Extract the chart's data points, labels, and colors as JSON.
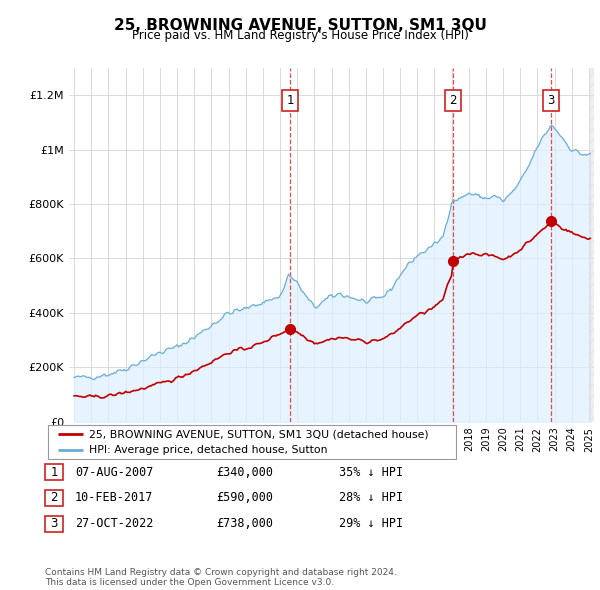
{
  "title": "25, BROWNING AVENUE, SUTTON, SM1 3QU",
  "subtitle": "Price paid vs. HM Land Registry's House Price Index (HPI)",
  "sale_dates_str": [
    "07-AUG-2007",
    "10-FEB-2017",
    "27-OCT-2022"
  ],
  "sale_years": [
    2007.6,
    2017.1,
    2022.8
  ],
  "sale_prices": [
    340000,
    590000,
    738000
  ],
  "sale_labels": [
    "1",
    "2",
    "3"
  ],
  "sale_pct": [
    "35% ↓ HPI",
    "28% ↓ HPI",
    "29% ↓ HPI"
  ],
  "legend_line1": "25, BROWNING AVENUE, SUTTON, SM1 3QU (detached house)",
  "legend_line2": "HPI: Average price, detached house, Sutton",
  "footer": "Contains HM Land Registry data © Crown copyright and database right 2024.\nThis data is licensed under the Open Government Licence v3.0.",
  "hpi_color": "#6aaed6",
  "sale_color": "#c00000",
  "shade_color": "#ddeeff",
  "ylim": [
    0,
    1300000
  ],
  "yticks": [
    0,
    200000,
    400000,
    600000,
    800000,
    1000000,
    1200000
  ],
  "xlim_start": 1994.7,
  "xlim_end": 2025.3
}
